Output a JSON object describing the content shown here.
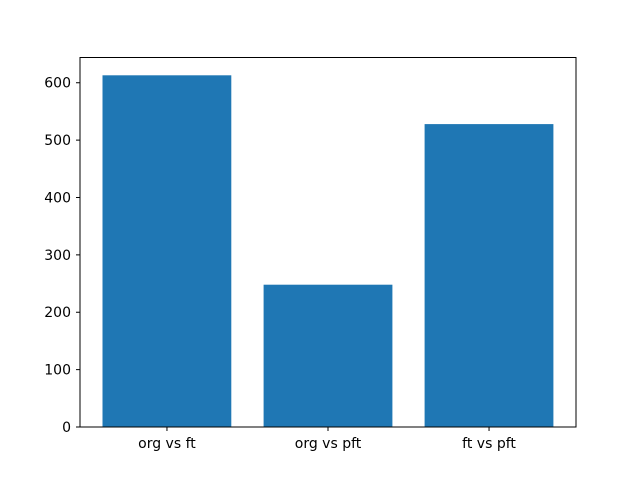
{
  "chart_data": {
    "type": "bar",
    "categories": [
      "org vs ft",
      "org vs pft",
      "ft vs pft"
    ],
    "values": [
      613,
      248,
      528
    ],
    "title": "",
    "xlabel": "",
    "ylabel": "",
    "ylim": [
      0,
      644
    ],
    "yticks": [
      0,
      100,
      200,
      300,
      400,
      500,
      600
    ],
    "bar_color": "#1f77b4",
    "bar_width_fraction": 0.8,
    "spine_color": "#000000",
    "background_color": "#ffffff",
    "grid": false,
    "legend_position": "none"
  }
}
